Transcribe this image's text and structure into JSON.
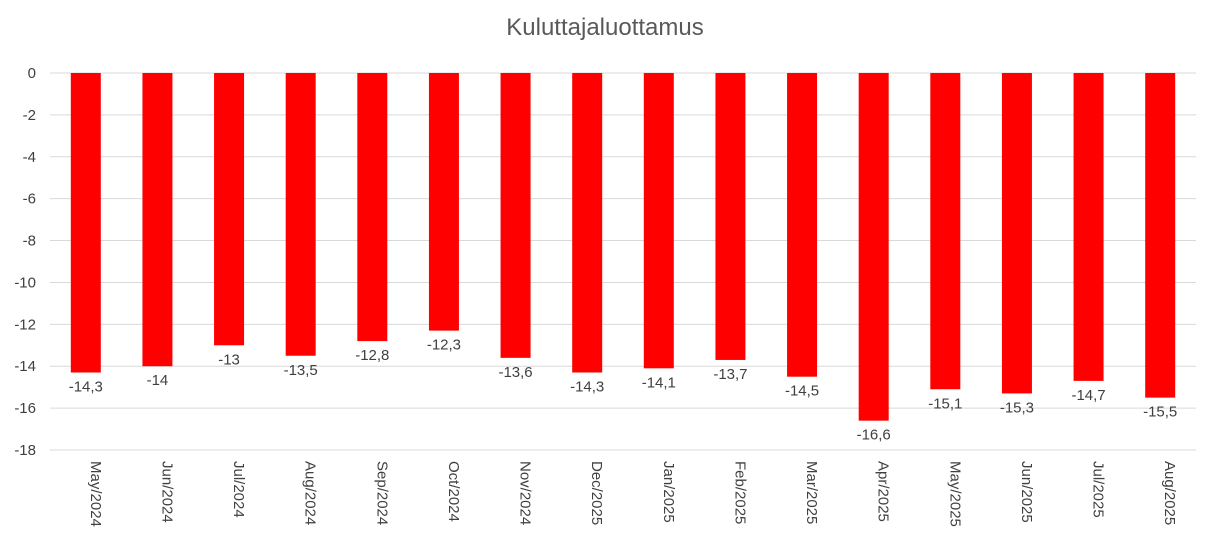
{
  "chart_data": {
    "type": "bar",
    "title": "Kuluttajaluottamus",
    "xlabel": "",
    "ylabel": "",
    "categories": [
      "May/2024",
      "Jun/2024",
      "Jul/2024",
      "Aug/2024",
      "Sep/2024",
      "Oct/2024",
      "Nov/2024",
      "Dec/2025",
      "Jan/2025",
      "Feb/2025",
      "Mar/2025",
      "Apr/2025",
      "May/2025",
      "Jun/2025",
      "Jul/2025",
      "Aug/2025"
    ],
    "values": [
      -14.3,
      -14,
      -13,
      -13.5,
      -12.8,
      -12.3,
      -13.6,
      -14.3,
      -14.1,
      -13.7,
      -14.5,
      -16.6,
      -15.1,
      -15.3,
      -14.7,
      -15.5
    ],
    "value_labels": [
      "-14,3",
      "-14",
      "-13",
      "-13,5",
      "-12,8",
      "-12,3",
      "-13,6",
      "-14,3",
      "-14,1",
      "-13,7",
      "-14,5",
      "-16,6",
      "-15,1",
      "-15,3",
      "-14,7",
      "-15,5"
    ],
    "ylim": [
      -18,
      0
    ],
    "yticks": [
      0,
      -2,
      -4,
      -6,
      -8,
      -10,
      -12,
      -14,
      -16,
      -18
    ],
    "ytick_labels": [
      "0",
      "-2",
      "-4",
      "-6",
      "-8",
      "-10",
      "-12",
      "-14",
      "-16",
      "-18"
    ],
    "grid": true,
    "legend": "none",
    "bar_color": "#ff0000",
    "grid_color": "#d9d9d9"
  }
}
